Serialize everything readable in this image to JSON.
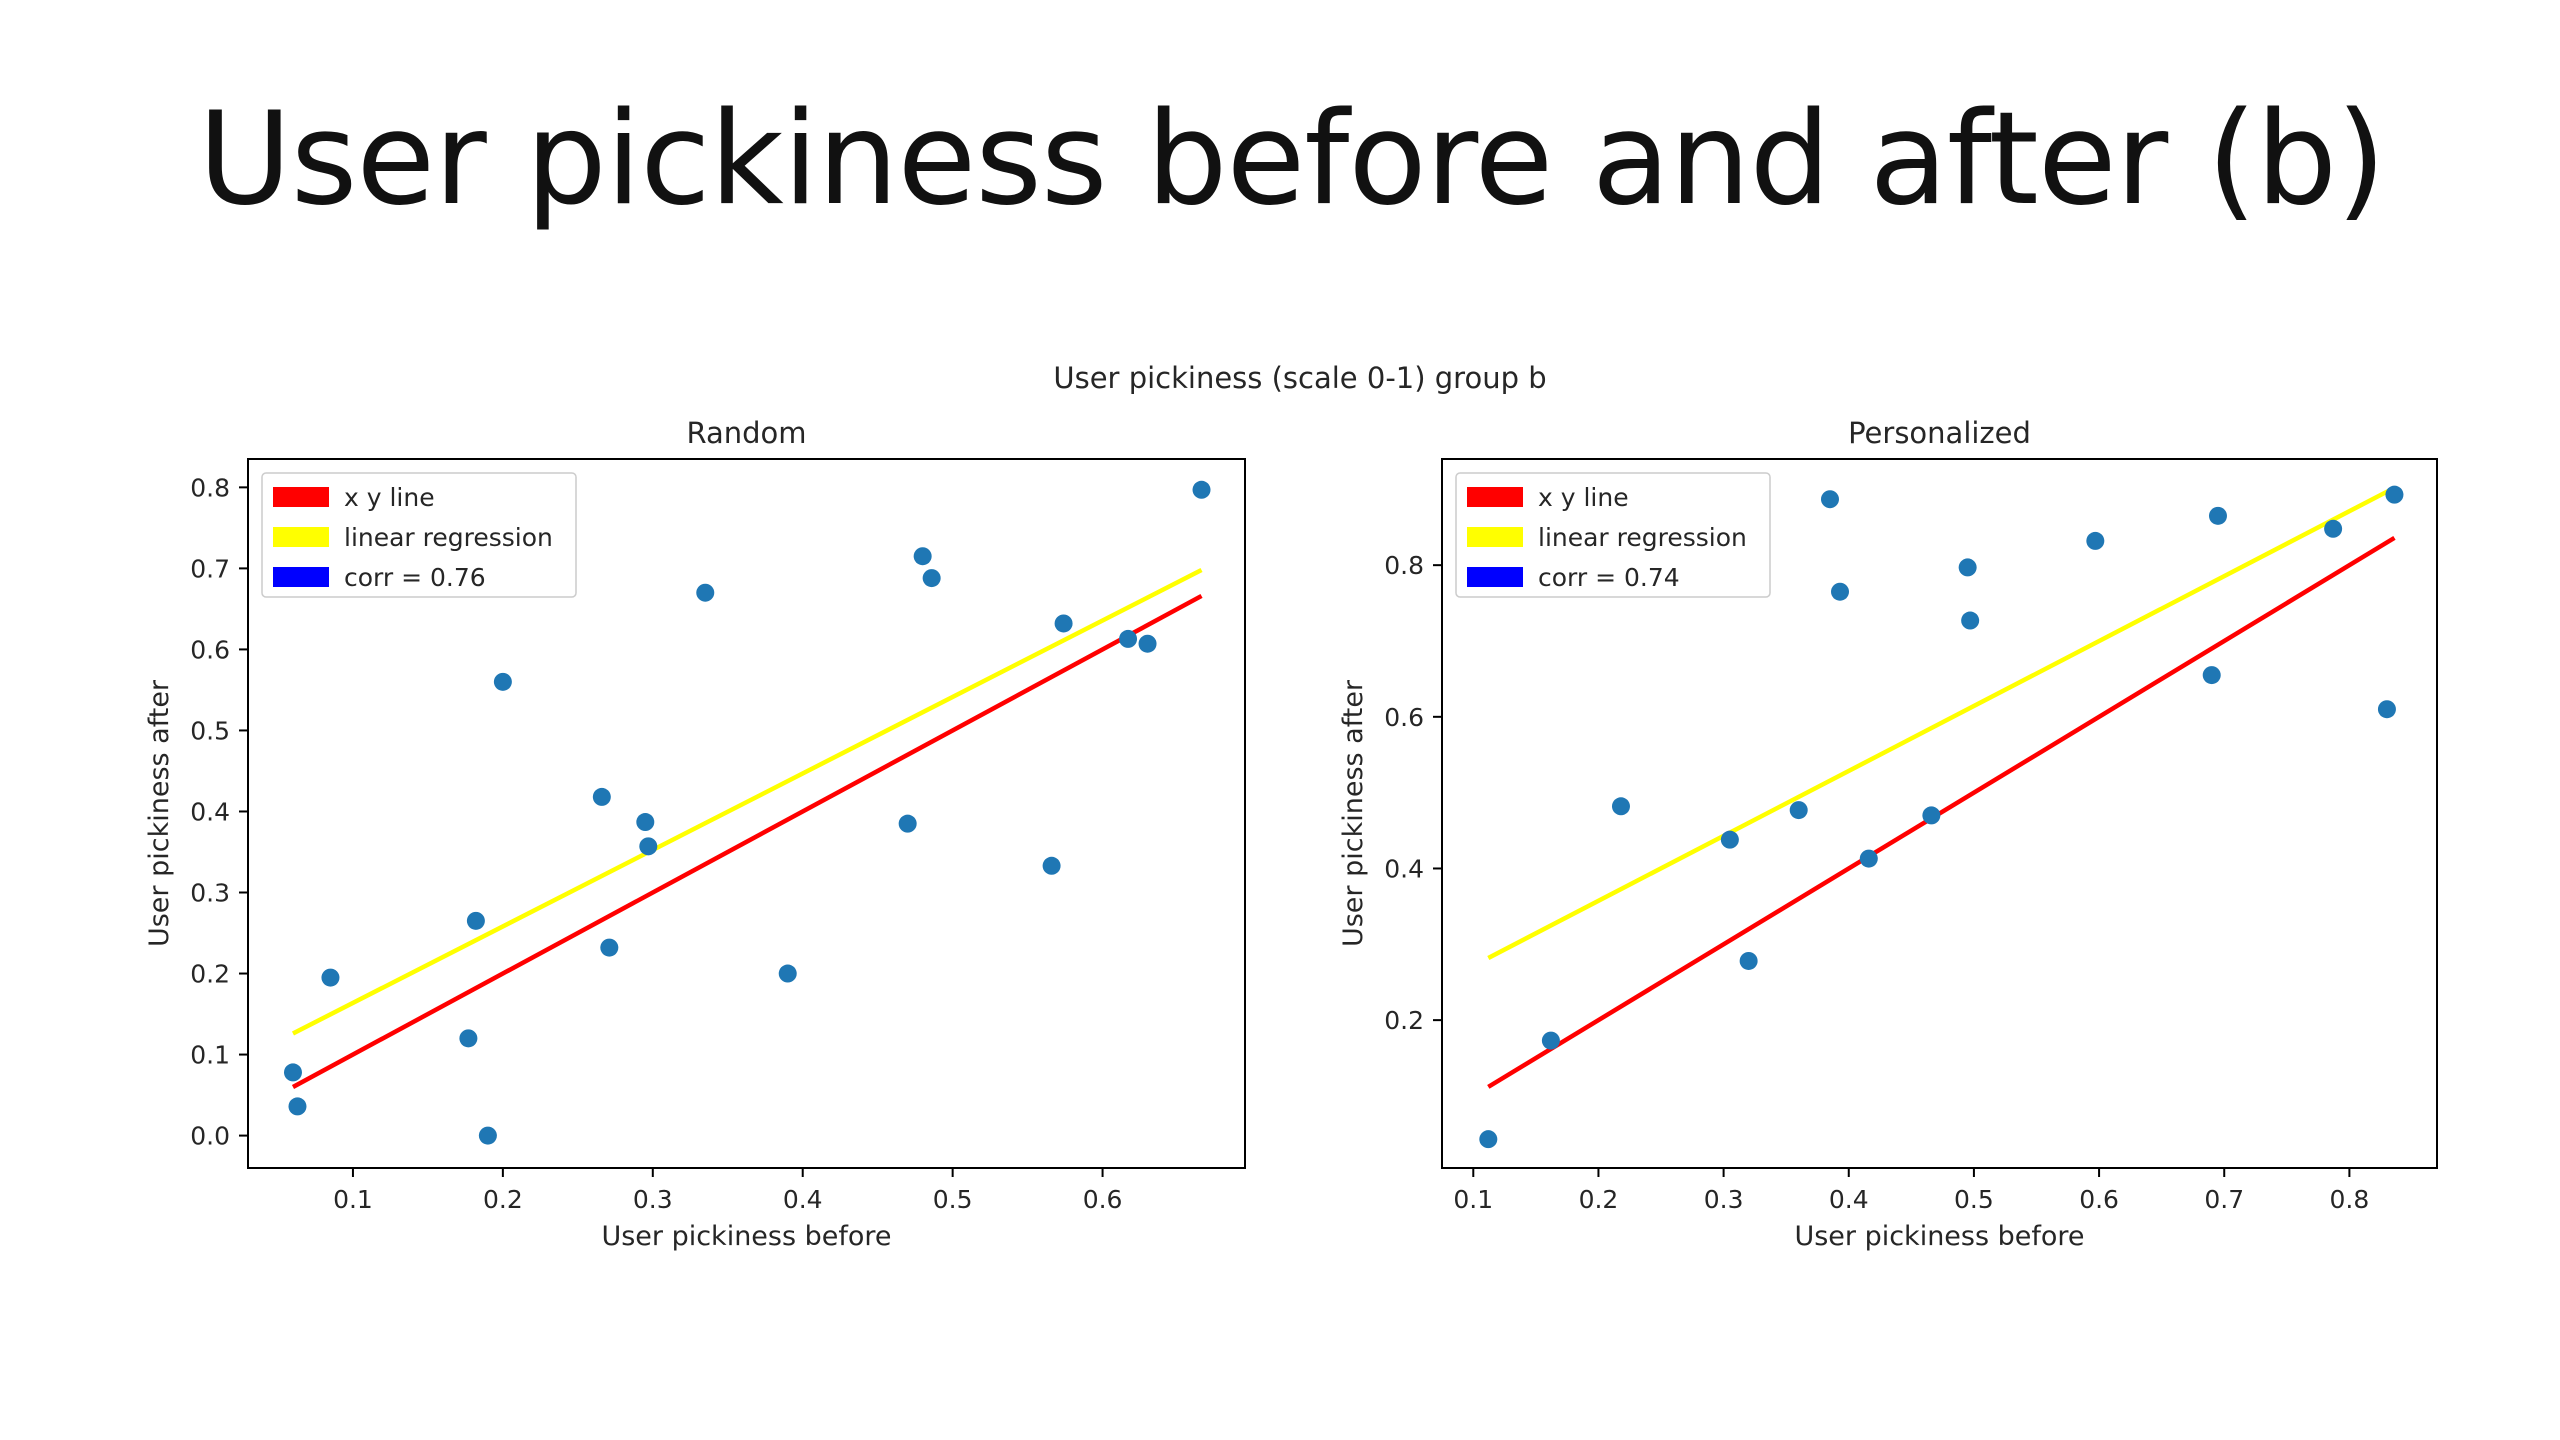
{
  "slide": {
    "title": "User pickiness before and after (b)"
  },
  "figure": {
    "suptitle": "User pickiness (scale 0-1) group b"
  },
  "colors": {
    "points": "#1f77b4",
    "xy_line": "#ff0000",
    "regression": "#ffff00",
    "corr_patch": "#0000ff"
  },
  "chart_data": [
    {
      "type": "scatter",
      "title": "Random",
      "xlabel": "User pickiness before",
      "ylabel": "User pickiness after",
      "xlim": [
        0.03,
        0.695
      ],
      "ylim": [
        -0.04,
        0.835
      ],
      "xticks": [
        0.1,
        0.2,
        0.3,
        0.4,
        0.5,
        0.6
      ],
      "yticks": [
        0.0,
        0.1,
        0.2,
        0.3,
        0.4,
        0.5,
        0.6,
        0.7,
        0.8
      ],
      "xtick_labels": [
        "0.1",
        "0.2",
        "0.3",
        "0.4",
        "0.5",
        "0.6"
      ],
      "ytick_labels": [
        "0.0",
        "0.1",
        "0.2",
        "0.3",
        "0.4",
        "0.5",
        "0.6",
        "0.7",
        "0.8"
      ],
      "points": {
        "x": [
          0.06,
          0.063,
          0.085,
          0.177,
          0.182,
          0.19,
          0.2,
          0.266,
          0.271,
          0.295,
          0.297,
          0.335,
          0.39,
          0.47,
          0.48,
          0.486,
          0.566,
          0.574,
          0.617,
          0.63,
          0.666
        ],
        "y": [
          0.078,
          0.036,
          0.195,
          0.12,
          0.265,
          0.0,
          0.56,
          0.418,
          0.232,
          0.387,
          0.357,
          0.67,
          0.2,
          0.385,
          0.715,
          0.688,
          0.333,
          0.632,
          0.613,
          0.607,
          0.797
        ]
      },
      "xy_line": {
        "x": [
          0.06,
          0.666
        ],
        "y": [
          0.06,
          0.666
        ]
      },
      "regression_line": {
        "x": [
          0.06,
          0.666
        ],
        "y": [
          0.126,
          0.698
        ]
      },
      "legend": {
        "position": "upper left",
        "entries": [
          "x y line",
          "linear regression",
          "corr = 0.76"
        ]
      }
    },
    {
      "type": "scatter",
      "title": "Personalized",
      "xlabel": "User pickiness before",
      "ylabel": "User pickiness after",
      "xlim": [
        0.075,
        0.87
      ],
      "ylim": [
        0.005,
        0.94
      ],
      "xticks": [
        0.1,
        0.2,
        0.3,
        0.4,
        0.5,
        0.6,
        0.7,
        0.8
      ],
      "yticks": [
        0.2,
        0.4,
        0.6,
        0.8
      ],
      "xtick_labels": [
        "0.1",
        "0.2",
        "0.3",
        "0.4",
        "0.5",
        "0.6",
        "0.7",
        "0.8"
      ],
      "ytick_labels": [
        "0.2",
        "0.4",
        "0.6",
        "0.8"
      ],
      "points": {
        "x": [
          0.112,
          0.162,
          0.218,
          0.305,
          0.32,
          0.36,
          0.385,
          0.393,
          0.416,
          0.466,
          0.495,
          0.497,
          0.597,
          0.69,
          0.695,
          0.787,
          0.83,
          0.836
        ],
        "y": [
          0.043,
          0.173,
          0.482,
          0.438,
          0.278,
          0.477,
          0.887,
          0.765,
          0.413,
          0.47,
          0.797,
          0.727,
          0.832,
          0.655,
          0.865,
          0.848,
          0.61,
          0.893
        ]
      },
      "xy_line": {
        "x": [
          0.112,
          0.836
        ],
        "y": [
          0.112,
          0.836
        ]
      },
      "regression_line": {
        "x": [
          0.112,
          0.836
        ],
        "y": [
          0.282,
          0.902
        ]
      },
      "legend": {
        "position": "upper left",
        "entries": [
          "x y line",
          "linear regression",
          "corr = 0.74"
        ]
      }
    }
  ]
}
